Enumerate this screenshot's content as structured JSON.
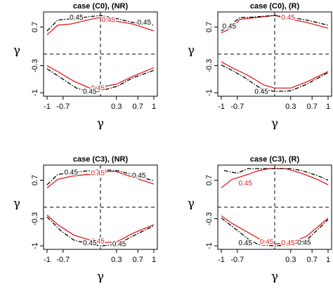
{
  "chart_data": [
    {
      "type": "contour",
      "title": "case (C0), (NR)",
      "xlabel": "γ",
      "ylabel": "γ",
      "xlim": [
        -1,
        1
      ],
      "ylim": [
        -1,
        1
      ],
      "xticks": [
        "-1",
        "-0.7",
        "0.3",
        "0.7",
        "1"
      ],
      "yticks": [
        "0.7",
        "-0.3",
        "-1"
      ],
      "xtick_values": [
        -1,
        -0.7,
        0.3,
        0.7,
        1
      ],
      "ytick_values": [
        0.7,
        -0.3,
        -1
      ],
      "reference_lines": {
        "x": 0,
        "y": 0
      },
      "series": [
        {
          "color": "#e41a1c",
          "style": "solid",
          "upper": [
            [
              -1,
              0.5
            ],
            [
              -0.8,
              0.75
            ],
            [
              -0.55,
              0.78
            ],
            [
              -0.25,
              0.88
            ],
            [
              0,
              0.95
            ],
            [
              0.3,
              0.85
            ],
            [
              0.6,
              0.78
            ],
            [
              1,
              0.6
            ]
          ],
          "lower": [
            [
              -1,
              -0.3
            ],
            [
              -0.8,
              -0.45
            ],
            [
              -0.5,
              -0.7
            ],
            [
              -0.2,
              -0.88
            ],
            [
              0,
              -0.85
            ],
            [
              0.3,
              -0.78
            ],
            [
              0.6,
              -0.58
            ],
            [
              1,
              -0.35
            ]
          ],
          "labels": [
            {
              "text": "0.45",
              "x": 0.15,
              "y": 0.88
            },
            {
              "text": "0.45",
              "x": -0.05,
              "y": -0.88
            }
          ]
        },
        {
          "color": "#000000",
          "style": "dashdot",
          "upper": [
            [
              -1,
              0.6
            ],
            [
              -0.8,
              0.88
            ],
            [
              -0.5,
              0.92
            ],
            [
              -0.2,
              0.97
            ],
            [
              0,
              1
            ],
            [
              0.3,
              0.92
            ],
            [
              0.6,
              0.82
            ],
            [
              1,
              0.75
            ]
          ],
          "lower": [
            [
              -1,
              -0.38
            ],
            [
              -0.7,
              -0.65
            ],
            [
              -0.45,
              -0.88
            ],
            [
              -0.15,
              -1
            ],
            [
              0,
              -0.95
            ],
            [
              0.3,
              -0.84
            ],
            [
              0.6,
              -0.62
            ],
            [
              1,
              -0.42
            ]
          ],
          "labels": [
            {
              "text": "0.45",
              "x": -0.45,
              "y": 0.95
            },
            {
              "text": "0.45",
              "x": 0.82,
              "y": 0.82
            },
            {
              "text": "0.45",
              "x": -0.2,
              "y": -0.97
            }
          ]
        }
      ]
    },
    {
      "type": "contour",
      "title": "case (C0), (R)",
      "xlabel": "γ",
      "ylabel": "γ",
      "xlim": [
        -1,
        1
      ],
      "ylim": [
        -1,
        1
      ],
      "xticks": [
        "-1",
        "-0.7",
        "0.3",
        "0.7",
        "1"
      ],
      "yticks": [
        "0.7",
        "-0.3",
        "-1"
      ],
      "xtick_values": [
        -1,
        -0.7,
        0.3,
        0.7,
        1
      ],
      "ytick_values": [
        0.7,
        -0.3,
        -1
      ],
      "reference_lines": {
        "x": 0,
        "y": 0
      },
      "series": [
        {
          "color": "#e41a1c",
          "style": "solid",
          "upper": [
            [
              -1,
              0.55
            ],
            [
              -0.8,
              0.68
            ],
            [
              -0.65,
              0.9
            ],
            [
              -0.5,
              0.92
            ],
            [
              0,
              1
            ],
            [
              0.3,
              0.9
            ],
            [
              0.6,
              0.82
            ],
            [
              1,
              0.67
            ]
          ],
          "lower": [
            [
              -1,
              -0.2
            ],
            [
              -0.8,
              -0.35
            ],
            [
              -0.5,
              -0.55
            ],
            [
              -0.2,
              -0.8
            ],
            [
              0,
              -0.88
            ],
            [
              0.3,
              -0.88
            ],
            [
              0.6,
              -0.72
            ],
            [
              1,
              -0.45
            ]
          ],
          "labels": [
            {
              "text": "0.45",
              "x": 0.25,
              "y": 0.95
            }
          ]
        },
        {
          "color": "#000000",
          "style": "dashdot",
          "upper": [
            [
              -1,
              0.6
            ],
            [
              -0.8,
              0.78
            ],
            [
              -0.65,
              0.95
            ],
            [
              -0.5,
              0.95
            ],
            [
              0,
              1
            ],
            [
              0.3,
              0.95
            ],
            [
              0.6,
              0.88
            ],
            [
              1,
              0.75
            ]
          ],
          "lower": [
            [
              -1,
              -0.28
            ],
            [
              -0.8,
              -0.42
            ],
            [
              -0.55,
              -0.62
            ],
            [
              -0.25,
              -0.9
            ],
            [
              0,
              -0.97
            ],
            [
              0.3,
              -0.95
            ],
            [
              0.6,
              -0.78
            ],
            [
              1,
              -0.48
            ]
          ],
          "labels": [
            {
              "text": "0.45",
              "x": -0.85,
              "y": 0.72
            },
            {
              "text": "0.45",
              "x": -0.25,
              "y": -0.97
            }
          ]
        }
      ]
    },
    {
      "type": "contour",
      "title": "case (C3), (NR)",
      "xlabel": "γ",
      "ylabel": "γ",
      "xlim": [
        -1,
        1
      ],
      "ylim": [
        -1,
        1
      ],
      "xticks": [
        "-1",
        "-0.7",
        "0.3",
        "0.7",
        "1"
      ],
      "yticks": [
        "0.7",
        "-0.3",
        "-1"
      ],
      "xtick_values": [
        -1,
        -0.7,
        0.3,
        0.7,
        1
      ],
      "ytick_values": [
        0.7,
        -0.3,
        -1
      ],
      "reference_lines": {
        "x": 0,
        "y": 0
      },
      "series": [
        {
          "color": "#e41a1c",
          "style": "solid",
          "upper": [
            [
              -1,
              0.5
            ],
            [
              -0.8,
              0.72
            ],
            [
              -0.55,
              0.8
            ],
            [
              -0.25,
              0.85
            ],
            [
              0,
              0.82
            ],
            [
              0.1,
              0.92
            ],
            [
              0.3,
              0.92
            ],
            [
              0.6,
              0.78
            ],
            [
              1,
              0.6
            ]
          ],
          "lower": [
            [
              -1,
              -0.2
            ],
            [
              -0.8,
              -0.45
            ],
            [
              -0.5,
              -0.72
            ],
            [
              -0.2,
              -0.85
            ],
            [
              0,
              -0.92
            ],
            [
              0.3,
              -0.9
            ],
            [
              0.6,
              -0.68
            ],
            [
              1,
              -0.45
            ]
          ],
          "labels": [
            {
              "text": "0.45",
              "x": -0.05,
              "y": 0.88
            },
            {
              "text": "0.45",
              "x": -0.05,
              "y": -0.88
            }
          ]
        },
        {
          "color": "#000000",
          "style": "dashdot",
          "upper": [
            [
              -1,
              0.58
            ],
            [
              -0.8,
              0.85
            ],
            [
              -0.5,
              0.9
            ],
            [
              -0.2,
              0.95
            ],
            [
              0,
              0.97
            ],
            [
              0.3,
              0.95
            ],
            [
              0.6,
              0.85
            ],
            [
              1,
              0.68
            ]
          ],
          "lower": [
            [
              -1,
              -0.25
            ],
            [
              -0.75,
              -0.6
            ],
            [
              -0.5,
              -0.85
            ],
            [
              -0.2,
              -0.95
            ],
            [
              0,
              -1
            ],
            [
              0.3,
              -0.97
            ],
            [
              0.6,
              -0.75
            ],
            [
              1,
              -0.48
            ]
          ],
          "labels": [
            {
              "text": "0.45",
              "x": -0.55,
              "y": 0.9
            },
            {
              "text": "0.45",
              "x": 0.72,
              "y": 0.82
            },
            {
              "text": "0.45",
              "x": -0.2,
              "y": -0.93
            },
            {
              "text": "0.45",
              "x": 0.35,
              "y": -0.95
            }
          ]
        }
      ]
    },
    {
      "type": "contour",
      "title": "case (C3), (R)",
      "xlabel": "γ",
      "ylabel": "γ",
      "xlim": [
        -1,
        1
      ],
      "ylim": [
        -1,
        1
      ],
      "xticks": [
        "-1",
        "-0.7",
        "0.3",
        "0.7",
        "1"
      ],
      "yticks": [
        "0.7",
        "-0.3",
        "-1"
      ],
      "xtick_values": [
        -1,
        -0.7,
        0.3,
        0.7,
        1
      ],
      "ytick_values": [
        0.7,
        -0.3,
        -1
      ],
      "reference_lines": {
        "x": 0,
        "y": 0
      },
      "series": [
        {
          "color": "#e41a1c",
          "style": "solid",
          "upper": [
            [
              -1,
              0.5
            ],
            [
              -0.8,
              0.72
            ],
            [
              -0.5,
              0.85
            ],
            [
              -0.3,
              0.95
            ],
            [
              -0.1,
              1
            ],
            [
              0.2,
              1
            ],
            [
              0.5,
              0.88
            ],
            [
              0.8,
              0.72
            ],
            [
              1,
              0.58
            ]
          ],
          "lower": [
            [
              -1,
              -0.22
            ],
            [
              -0.8,
              -0.42
            ],
            [
              -0.5,
              -0.65
            ],
            [
              -0.25,
              -0.85
            ],
            [
              0,
              -0.95
            ],
            [
              0.3,
              -0.92
            ],
            [
              0.6,
              -0.75
            ],
            [
              1,
              -0.28
            ]
          ],
          "labels": [
            {
              "text": "0.45",
              "x": -0.55,
              "y": 0.62
            },
            {
              "text": "0.45",
              "x": -0.15,
              "y": -0.9
            },
            {
              "text": "0.45",
              "x": 0.25,
              "y": -0.93
            }
          ]
        },
        {
          "color": "#000000",
          "style": "dashdot",
          "upper": [
            [
              -0.95,
              0.95
            ],
            [
              -0.7,
              0.88
            ],
            [
              -0.5,
              1
            ],
            [
              0.3,
              1
            ],
            [
              0.5,
              0.95
            ],
            [
              0.8,
              0.82
            ],
            [
              1,
              0.7
            ]
          ],
          "lower": [
            [
              -1,
              -0.28
            ],
            [
              -0.7,
              -0.6
            ],
            [
              -0.5,
              -0.82
            ],
            [
              -0.3,
              -0.97
            ],
            [
              0,
              -1
            ],
            [
              0.3,
              -0.98
            ],
            [
              0.6,
              -0.85
            ],
            [
              1,
              -0.32
            ]
          ],
          "labels": [
            {
              "text": "0.45",
              "x": -0.55,
              "y": -0.93
            },
            {
              "text": "0.45",
              "x": 0.55,
              "y": -0.92
            }
          ]
        }
      ]
    }
  ]
}
